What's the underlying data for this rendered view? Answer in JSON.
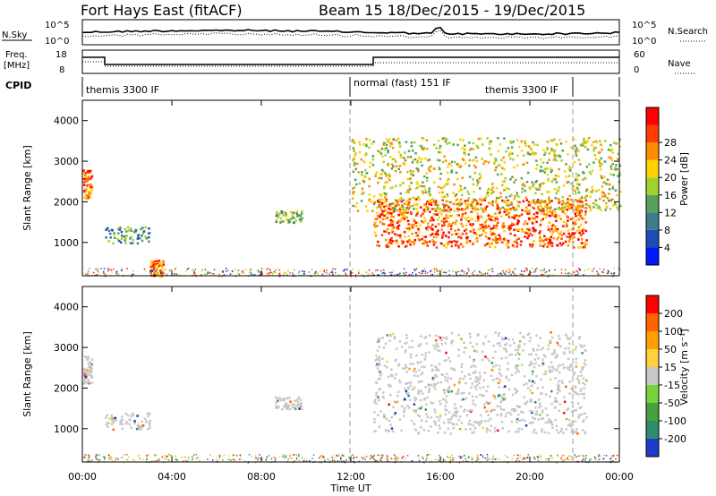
{
  "header": {
    "radar_title": "Fort Hays East (fitACF)",
    "beam_title": "Beam 15  18/Dec/2015 - 19/Dec/2015"
  },
  "top_panel": {
    "left_label": "N.Sky",
    "right_label": "N.Search",
    "left_ticks": [
      "10^5",
      "10^0"
    ],
    "right_ticks": [
      "10^5",
      "10^0"
    ]
  },
  "freq_panel": {
    "left_label_1": "Freq.",
    "left_label_2": "[MHz]",
    "right_label": "Nave",
    "left_ticks": [
      "18",
      "8"
    ],
    "right_ticks": [
      "60",
      "0"
    ]
  },
  "cpid_panel": {
    "label": "CPID",
    "segments": [
      "themis 3300 IF",
      "normal (fast) 151 IF",
      "themis 3300 IF"
    ]
  },
  "x_axis": {
    "label": "Time UT",
    "ticks": [
      "00:00",
      "04:00",
      "08:00",
      "12:00",
      "16:00",
      "20:00",
      "00:00"
    ]
  },
  "colorbar_power": {
    "title": "Power [dB]",
    "labels": [
      "4",
      "8",
      "12",
      "16",
      "20",
      "24",
      "28"
    ],
    "colors": [
      "#0019ff",
      "#1e4bb4",
      "#3c7d8c",
      "#5aa05a",
      "#a0d22d",
      "#ffd200",
      "#ff8c00",
      "#ff3c00",
      "#ff0000"
    ]
  },
  "colorbar_velocity": {
    "title": "Velocity [m s⁻¹]",
    "labels": [
      "200",
      "100",
      "50",
      "15",
      "-15",
      "-50",
      "-100",
      "-200"
    ],
    "colors": [
      "#1e3cc8",
      "#2d8c6e",
      "#46a03c",
      "#78d23c",
      "#c8c8c8",
      "#ffd23c",
      "#ffa000",
      "#ff6400",
      "#ff0000"
    ]
  },
  "chart_data": [
    {
      "type": "heatmap",
      "title": "Power",
      "xlabel": "Time UT",
      "ylabel": "Slant Range [km]",
      "xlim": [
        0,
        24
      ],
      "ylim": [
        180,
        4500
      ],
      "yticks": [
        "1000",
        "2000",
        "3000",
        "4000"
      ],
      "description_regions": [
        {
          "t": [
            0,
            0.4
          ],
          "r": [
            2100,
            2800
          ],
          "level": 26
        },
        {
          "t": [
            1.0,
            3.0
          ],
          "r": [
            1000,
            1400
          ],
          "level": 12
        },
        {
          "t": [
            3.0,
            3.6
          ],
          "r": [
            180,
            600
          ],
          "level": 26
        },
        {
          "t": [
            8.6,
            9.8
          ],
          "r": [
            1500,
            1800
          ],
          "level": 14
        },
        {
          "t": [
            13.0,
            22.5
          ],
          "r": [
            900,
            2100
          ],
          "level": 26
        },
        {
          "t": [
            12.0,
            24.0
          ],
          "r": [
            1800,
            3600
          ],
          "level": 16
        }
      ]
    },
    {
      "type": "heatmap",
      "title": "Velocity",
      "xlabel": "Time UT",
      "ylabel": "Slant Range [km]",
      "xlim": [
        0,
        24
      ],
      "ylim": [
        180,
        4500
      ],
      "yticks": [
        "1000",
        "2000",
        "3000",
        "4000"
      ],
      "description_regions": [
        {
          "t": [
            0,
            0.4
          ],
          "r": [
            2100,
            2800
          ],
          "level": 0
        },
        {
          "t": [
            1.0,
            3.0
          ],
          "r": [
            1000,
            1400
          ],
          "level": 0
        },
        {
          "t": [
            8.6,
            9.8
          ],
          "r": [
            1500,
            1800
          ],
          "level": 20
        },
        {
          "t": [
            13.0,
            22.5
          ],
          "r": [
            900,
            3400
          ],
          "level": 0
        }
      ]
    }
  ]
}
